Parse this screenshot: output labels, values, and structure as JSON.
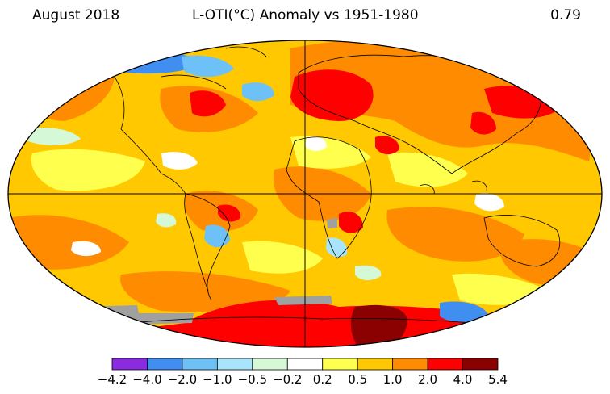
{
  "header": {
    "period": "August 2018",
    "title": "L-OTI(°C) Anomaly vs 1951-1980",
    "global_mean": "0.79"
  },
  "legend": {
    "labels": [
      "−4.2",
      "−4.0",
      "−2.0",
      "−1.0",
      "−0.5",
      "−0.2",
      "0.2",
      "0.5",
      "1.0",
      "2.0",
      "4.0",
      "5.4"
    ],
    "colors": [
      "#8a2be2",
      "#3f8ef0",
      "#6ec1f7",
      "#a8e4fb",
      "#d5f8d6",
      "#ffffff",
      "#ffff4d",
      "#ffc800",
      "#ff8c00",
      "#ff0000",
      "#8b0000"
    ],
    "missing_color": "#a0a0a0"
  }
}
